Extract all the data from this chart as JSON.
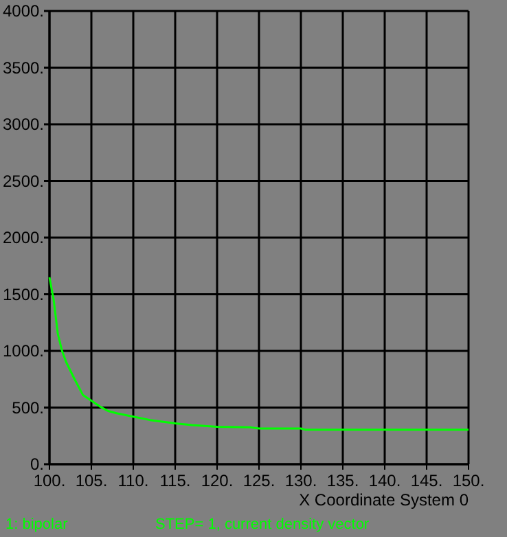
{
  "chart_data": {
    "type": "line",
    "xlabel": "X Coordinate System 0",
    "xlim": [
      100,
      150
    ],
    "ylim": [
      0,
      4000
    ],
    "xticks": [
      {
        "value": 100,
        "label": "100."
      },
      {
        "value": 105,
        "label": "105."
      },
      {
        "value": 110,
        "label": "110."
      },
      {
        "value": 115,
        "label": "115."
      },
      {
        "value": 120,
        "label": "120."
      },
      {
        "value": 125,
        "label": "125."
      },
      {
        "value": 130,
        "label": "130."
      },
      {
        "value": 135,
        "label": "135."
      },
      {
        "value": 140,
        "label": "140."
      },
      {
        "value": 145,
        "label": "145."
      },
      {
        "value": 150,
        "label": "150."
      }
    ],
    "yticks": [
      {
        "value": 0,
        "label": "0."
      },
      {
        "value": 500,
        "label": "500."
      },
      {
        "value": 1000,
        "label": "1000."
      },
      {
        "value": 1500,
        "label": "1500."
      },
      {
        "value": 2000,
        "label": "2000."
      },
      {
        "value": 2500,
        "label": "2500."
      },
      {
        "value": 3000,
        "label": "3000."
      },
      {
        "value": 3500,
        "label": "3500."
      },
      {
        "value": 4000,
        "label": "4000."
      }
    ],
    "grid": true,
    "legend": "bottom left",
    "series": [
      {
        "name": "1: bipolar",
        "color": "#00ff00",
        "x": [
          100,
          100.5,
          101,
          101.5,
          102,
          103,
          104,
          105,
          106,
          107,
          108,
          110,
          112,
          115,
          117,
          120,
          124,
          125,
          130,
          130.5,
          140,
          150
        ],
        "values": [
          1650,
          1450,
          1150,
          1000,
          900,
          750,
          610,
          560,
          510,
          470,
          450,
          420,
          390,
          360,
          345,
          330,
          325,
          315,
          315,
          305,
          305,
          305
        ]
      }
    ],
    "annotations": [
      "STEP= 1,  current density vector"
    ]
  }
}
